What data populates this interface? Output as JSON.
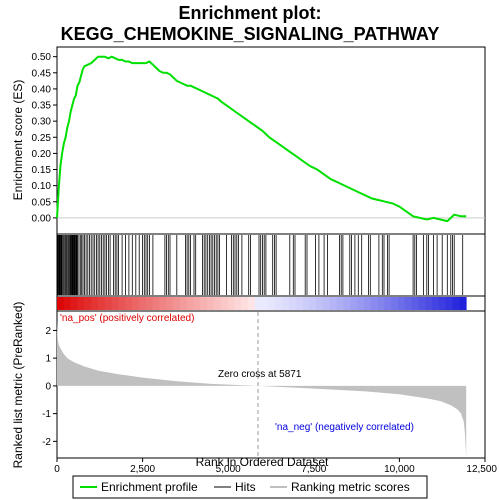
{
  "chart_data": {
    "type": "line",
    "title_line1": "Enrichment plot:",
    "title_line2": "KEGG_CHEMOKINE_SIGNALING_PATHWAY",
    "es_panel": {
      "ylabel": "Enrichment score (ES)",
      "ylim": [
        -0.05,
        0.53
      ],
      "yticks": [
        "0.00",
        "0.05",
        "0.10",
        "0.15",
        "0.20",
        "0.25",
        "0.30",
        "0.35",
        "0.40",
        "0.45",
        "0.50"
      ],
      "ytick_values": [
        0,
        0.05,
        0.1,
        0.15,
        0.2,
        0.25,
        0.3,
        0.35,
        0.4,
        0.45,
        0.5
      ],
      "series": [
        {
          "name": "Enrichment profile",
          "color": "#00e000",
          "x": [
            0,
            50,
            100,
            150,
            200,
            250,
            300,
            350,
            400,
            450,
            500,
            550,
            600,
            650,
            700,
            750,
            800,
            900,
            1000,
            1100,
            1200,
            1300,
            1400,
            1500,
            1600,
            1700,
            1800,
            1900,
            2000,
            2100,
            2200,
            2300,
            2400,
            2500,
            2600,
            2700,
            2800,
            2900,
            3000,
            3100,
            3200,
            3300,
            3400,
            3500,
            3600,
            3700,
            3800,
            3900,
            4000,
            4100,
            4200,
            4300,
            4400,
            4500,
            4600,
            4700,
            4800,
            5000,
            5200,
            5400,
            5600,
            5800,
            6000,
            6200,
            6400,
            6600,
            6800,
            7000,
            7200,
            7400,
            7600,
            7800,
            8000,
            8200,
            8400,
            8600,
            8800,
            9000,
            9200,
            9400,
            9600,
            9800,
            10000,
            10200,
            10400,
            10600,
            10800,
            11000,
            11200,
            11400,
            11500,
            11600,
            11800,
            11950
          ],
          "y": [
            0.0,
            0.09,
            0.16,
            0.2,
            0.23,
            0.25,
            0.28,
            0.3,
            0.33,
            0.35,
            0.37,
            0.38,
            0.41,
            0.42,
            0.44,
            0.46,
            0.47,
            0.475,
            0.48,
            0.49,
            0.5,
            0.5,
            0.5,
            0.495,
            0.5,
            0.495,
            0.49,
            0.49,
            0.485,
            0.485,
            0.48,
            0.48,
            0.48,
            0.48,
            0.48,
            0.485,
            0.475,
            0.465,
            0.455,
            0.45,
            0.45,
            0.445,
            0.435,
            0.425,
            0.42,
            0.415,
            0.41,
            0.41,
            0.405,
            0.4,
            0.395,
            0.39,
            0.385,
            0.38,
            0.375,
            0.37,
            0.36,
            0.345,
            0.33,
            0.315,
            0.3,
            0.285,
            0.27,
            0.25,
            0.235,
            0.22,
            0.205,
            0.19,
            0.175,
            0.16,
            0.15,
            0.135,
            0.12,
            0.11,
            0.1,
            0.09,
            0.08,
            0.07,
            0.06,
            0.055,
            0.05,
            0.045,
            0.035,
            0.02,
            0.005,
            0.0,
            -0.005,
            0.0,
            -0.005,
            -0.01,
            0.0,
            0.01,
            0.005,
            0.005
          ]
        }
      ]
    },
    "hits_panel": {
      "hits": [
        20,
        40,
        60,
        80,
        100,
        120,
        140,
        170,
        200,
        230,
        260,
        290,
        320,
        350,
        380,
        400,
        420,
        440,
        460,
        480,
        500,
        520,
        540,
        560,
        580,
        600,
        640,
        680,
        720,
        760,
        800,
        850,
        900,
        950,
        1000,
        1050,
        1100,
        1150,
        1200,
        1250,
        1300,
        1350,
        1400,
        1450,
        1500,
        1550,
        1650,
        1700,
        1750,
        1800,
        1900,
        2000,
        2100,
        2200,
        2300,
        2400,
        2500,
        2550,
        2600,
        2650,
        2700,
        2800,
        3150,
        3200,
        3250,
        3300,
        3500,
        3750,
        3800,
        3850,
        3900,
        4000,
        4050,
        4250,
        4300,
        4350,
        4400,
        4450,
        4500,
        4550,
        4600,
        4650,
        4700,
        4750,
        4950,
        5100,
        5150,
        5200,
        5250,
        5300,
        5400,
        5600,
        5650,
        5900,
        5950,
        6000,
        6050,
        6100,
        6300,
        6350,
        6400,
        6800,
        6900,
        6950,
        7250,
        7300,
        7550,
        7650,
        7800,
        7900,
        8250,
        8300,
        8350,
        8550,
        8600,
        8700,
        8800,
        8900,
        9100,
        9150,
        9400,
        9500,
        9550,
        9650,
        9700,
        10400,
        10450,
        10500,
        10700,
        10800,
        10850,
        11000,
        11100,
        11250,
        11400,
        11500,
        11550,
        11600,
        11850
      ]
    },
    "heatmap_bar": {
      "colors": [
        "#dd0000",
        "#ffb0b0",
        "#ffffff",
        "#b0b0ff",
        "#0000cc"
      ]
    },
    "metric_panel": {
      "ylabel": "Ranked list metric (PreRanked)",
      "ylim": [
        -2.6,
        2.7
      ],
      "yticks": [
        "2",
        "1",
        "0",
        "-1",
        "-2"
      ],
      "ytick_values": [
        2,
        1,
        0,
        -1,
        -2
      ],
      "fill_color": "#c0c0c0",
      "x": [
        0,
        20,
        50,
        100,
        200,
        300,
        500,
        800,
        1200,
        1800,
        2500,
        3500,
        4500,
        5871,
        7000,
        8000,
        9000,
        10000,
        10800,
        11200,
        11500,
        11700,
        11800,
        11880,
        11920,
        11950
      ],
      "y": [
        2.35,
        1.7,
        1.5,
        1.35,
        1.15,
        1.0,
        0.85,
        0.7,
        0.55,
        0.42,
        0.3,
        0.17,
        0.07,
        0.0,
        -0.07,
        -0.13,
        -0.2,
        -0.3,
        -0.45,
        -0.55,
        -0.7,
        -0.85,
        -1.0,
        -1.3,
        -1.8,
        -2.6
      ],
      "pos_label": "'na_pos' (positively correlated)",
      "neg_label": "'na_neg' (negatively correlated)",
      "zero_cross_label": "Zero cross at 5871",
      "zero_cross": 5871,
      "pos_color": "#dd0000",
      "neg_color": "#0000dd"
    },
    "xaxis": {
      "xlabel": "Rank in Ordered Dataset",
      "xlim": [
        0,
        12500
      ],
      "xticks": [
        "0",
        "2,500",
        "5,000",
        "7,500",
        "10,000",
        "12,500"
      ],
      "xtick_values": [
        0,
        2500,
        5000,
        7500,
        10000,
        12500
      ],
      "n_genes": 11950
    },
    "legend": {
      "placement": "bottom",
      "items": [
        {
          "label": "Enrichment profile",
          "color": "#00e000"
        },
        {
          "label": "Hits",
          "color": "#000000"
        },
        {
          "label": "Ranking metric scores",
          "color": "#c0c0c0"
        }
      ]
    }
  }
}
